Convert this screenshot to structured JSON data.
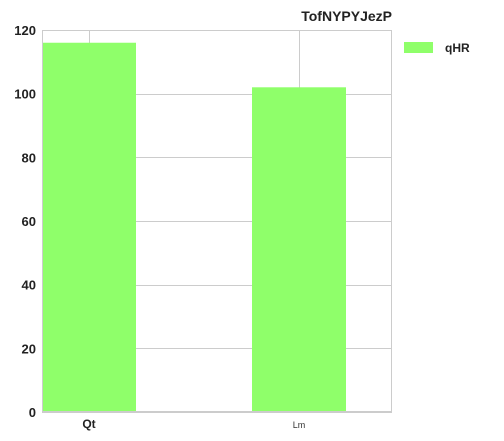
{
  "chart_data": {
    "type": "bar",
    "title": "TofNYPYJezP",
    "categories": [
      "Qt",
      "Lm"
    ],
    "series": [
      {
        "name": "qHR",
        "values": [
          116,
          102
        ],
        "color": "#8fff6a"
      }
    ],
    "xlabel": "",
    "ylabel": "",
    "ylim": [
      0,
      120
    ],
    "yticks": [
      0,
      20,
      40,
      60,
      80,
      100,
      120
    ],
    "grid": true,
    "legend_position": "right-top"
  }
}
